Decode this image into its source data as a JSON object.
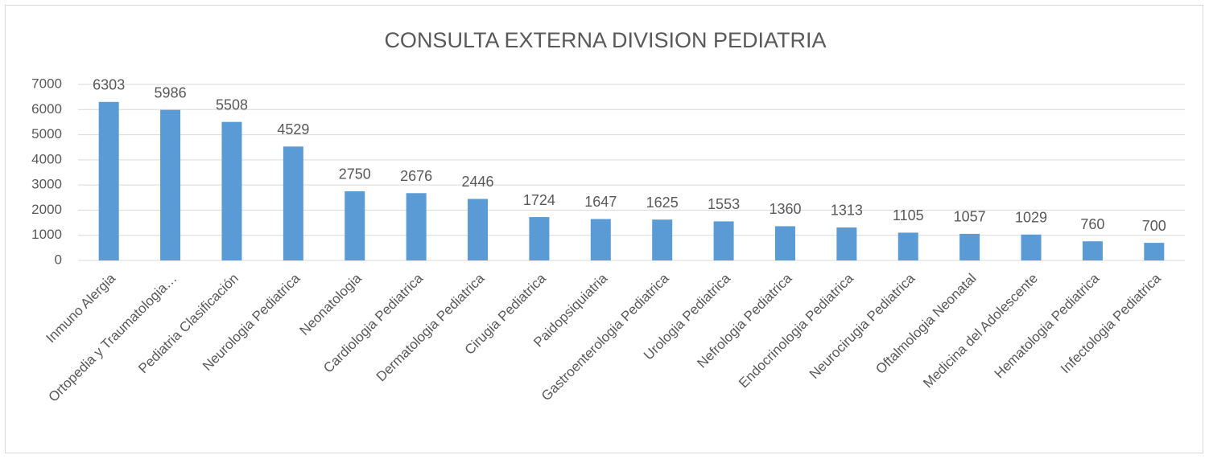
{
  "chart_data": {
    "type": "bar",
    "title": "CONSULTA EXTERNA DIVISION PEDIATRIA",
    "categories": [
      "Inmuno Alergia",
      "Ortopedia y Traumatologia…",
      "Pediatria Clasificación",
      "Neurologia Pediatrica",
      "Neonatologia",
      "Cardiologia Pediatrica",
      "Dermatologia Pediatrica",
      "Cirugia Pediatrica",
      "Paidopsiquiatria",
      "Gastroenterologia Pediatrica",
      "Urologia Pediatrica",
      "Nefrologia Pediatrica",
      "Endocrinologia Pediatrica",
      "Neurocirugia Pediatrica",
      "Oftalmologia Neonatal",
      "Medicina del Adolescente",
      "Hematologia Pediatrica",
      "Infectologia Pediatrica"
    ],
    "values": [
      6303,
      5986,
      5508,
      4529,
      2750,
      2676,
      2446,
      1724,
      1647,
      1625,
      1553,
      1360,
      1313,
      1105,
      1057,
      1029,
      760,
      700
    ],
    "color": "#5b9bd5",
    "ylim": [
      0,
      7000
    ],
    "yticks": [
      0,
      1000,
      2000,
      3000,
      4000,
      5000,
      6000,
      7000
    ],
    "grid": true
  }
}
